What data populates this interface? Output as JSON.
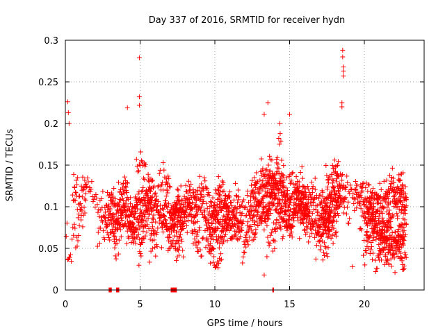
{
  "chart_data": {
    "type": "scatter",
    "title": "Day 337 of 2016, SRMTID for receiver hydn",
    "xlabel": "GPS time / hours",
    "ylabel": "SRMTID / TECUs",
    "xlim": [
      0,
      24
    ],
    "ylim": [
      0,
      0.3
    ],
    "x_ticks": [
      0,
      5,
      10,
      15,
      20
    ],
    "x_tick_labels": [
      "0",
      "5",
      "10",
      "15",
      "20"
    ],
    "y_ticks": [
      0,
      0.05,
      0.1,
      0.15,
      0.2,
      0.25,
      0.3
    ],
    "y_tick_labels": [
      "0",
      "0.05",
      "0.1",
      "0.15",
      "0.2",
      "0.25",
      "0.3"
    ],
    "grid": true,
    "marker": "plus",
    "color": "#ff0000",
    "series": [
      {
        "name": "SRMTID",
        "notable_points": [
          {
            "x": 0.15,
            "y": 0.226
          },
          {
            "x": 0.2,
            "y": 0.213
          },
          {
            "x": 0.25,
            "y": 0.2
          },
          {
            "x": 4.15,
            "y": 0.219
          },
          {
            "x": 4.95,
            "y": 0.279
          },
          {
            "x": 4.95,
            "y": 0.232
          },
          {
            "x": 4.95,
            "y": 0.222
          },
          {
            "x": 13.3,
            "y": 0.211
          },
          {
            "x": 13.55,
            "y": 0.225
          },
          {
            "x": 14.35,
            "y": 0.2
          },
          {
            "x": 15.0,
            "y": 0.211
          },
          {
            "x": 18.55,
            "y": 0.288
          },
          {
            "x": 18.55,
            "y": 0.28
          },
          {
            "x": 18.6,
            "y": 0.268
          },
          {
            "x": 18.6,
            "y": 0.263
          },
          {
            "x": 18.6,
            "y": 0.257
          },
          {
            "x": 18.5,
            "y": 0.225
          },
          {
            "x": 18.5,
            "y": 0.22
          },
          {
            "x": 19.2,
            "y": 0.028
          },
          {
            "x": 13.3,
            "y": 0.018
          },
          {
            "x": 22.05,
            "y": 0.021
          }
        ],
        "activity_profile": [
          {
            "t": 0.0,
            "base": 0.085,
            "spread": 0.035
          },
          {
            "t": 1.0,
            "base": 0.09,
            "spread": 0.035
          },
          {
            "t": 2.0,
            "base": 0.085,
            "spread": 0.03
          },
          {
            "t": 3.0,
            "base": 0.075,
            "spread": 0.03
          },
          {
            "t": 4.0,
            "base": 0.1,
            "spread": 0.04
          },
          {
            "t": 5.0,
            "base": 0.105,
            "spread": 0.045
          },
          {
            "t": 6.0,
            "base": 0.075,
            "spread": 0.03
          },
          {
            "t": 7.0,
            "base": 0.075,
            "spread": 0.03
          },
          {
            "t": 8.0,
            "base": 0.1,
            "spread": 0.035
          },
          {
            "t": 9.0,
            "base": 0.09,
            "spread": 0.035
          },
          {
            "t": 10.0,
            "base": 0.085,
            "spread": 0.03
          },
          {
            "t": 11.0,
            "base": 0.075,
            "spread": 0.025
          },
          {
            "t": 12.0,
            "base": 0.085,
            "spread": 0.03
          },
          {
            "t": 13.0,
            "base": 0.11,
            "spread": 0.04
          },
          {
            "t": 14.0,
            "base": 0.1,
            "spread": 0.04
          },
          {
            "t": 15.0,
            "base": 0.105,
            "spread": 0.035
          },
          {
            "t": 16.0,
            "base": 0.085,
            "spread": 0.035
          },
          {
            "t": 17.0,
            "base": 0.085,
            "spread": 0.035
          },
          {
            "t": 18.0,
            "base": 0.11,
            "spread": 0.04
          },
          {
            "t": 19.0,
            "base": 0.095,
            "spread": 0.035
          },
          {
            "t": 20.0,
            "base": 0.09,
            "spread": 0.035
          },
          {
            "t": 21.0,
            "base": 0.08,
            "spread": 0.03
          },
          {
            "t": 22.0,
            "base": 0.075,
            "spread": 0.03
          },
          {
            "t": 22.8,
            "base": 0.09,
            "spread": 0.03
          }
        ],
        "time_range": [
          0,
          22.8
        ],
        "zero_points_x": [
          2.95,
          3.05,
          3.45,
          3.55,
          7.1,
          7.2,
          7.3,
          7.4,
          13.9
        ]
      }
    ]
  }
}
